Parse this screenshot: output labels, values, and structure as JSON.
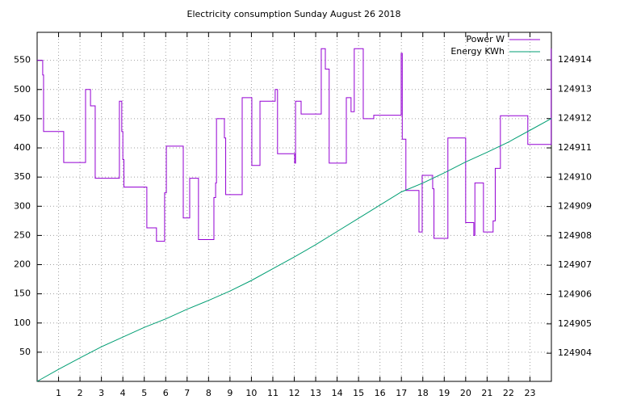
{
  "chart_data": {
    "type": "step",
    "title": "Electricity consumption Sunday August 26 2018",
    "xlim": [
      0,
      24
    ],
    "xticks": [
      1,
      2,
      3,
      4,
      5,
      6,
      7,
      8,
      9,
      10,
      11,
      12,
      13,
      14,
      15,
      16,
      17,
      18,
      19,
      20,
      21,
      22,
      23
    ],
    "ylim": [
      0,
      598
    ],
    "yticks": [
      50,
      100,
      150,
      200,
      250,
      300,
      350,
      400,
      450,
      500,
      550
    ],
    "y2lim": [
      124903.04,
      124914.94
    ],
    "y2ticks": [
      124904,
      124905,
      124906,
      124907,
      124908,
      124909,
      124910,
      124911,
      124912,
      124913,
      124914
    ],
    "grid": true,
    "legend": "top-right",
    "series": [
      {
        "name": "Power W",
        "color": "#9400d3",
        "x": [
          0,
          0.26,
          0.3,
          1.24,
          2.26,
          2.49,
          2.71,
          3.84,
          3.95,
          4.0,
          4.05,
          5.12,
          5.57,
          5.95,
          6.03,
          6.82,
          7.12,
          7.53,
          8.25,
          8.33,
          8.37,
          8.74,
          8.8,
          9.57,
          10.02,
          10.4,
          11.11,
          11.22,
          12.02,
          12.06,
          12.32,
          13.26,
          13.45,
          13.63,
          14.43,
          14.65,
          14.8,
          15.22,
          15.71,
          16.99,
          17.04,
          17.21,
          17.82,
          17.97,
          18.46,
          18.52,
          19.17,
          20.0,
          20.38,
          20.43,
          20.83,
          21.28,
          21.38,
          21.62,
          22.9,
          23.99
        ],
        "values": [
          550,
          525,
          428,
          375,
          500,
          472,
          348,
          480,
          428,
          380,
          333,
          263,
          240,
          323,
          403,
          280,
          348,
          243,
          315,
          340,
          450,
          417,
          320,
          486,
          370,
          480,
          500,
          390,
          374,
          480,
          458,
          570,
          535,
          374,
          486,
          462,
          570,
          450,
          456,
          562,
          415,
          327,
          256,
          353,
          330,
          245,
          417,
          272,
          250,
          340,
          256,
          275,
          365,
          455,
          406,
          570
        ]
      },
      {
        "name": "Energy KWh",
        "color": "#009e73",
        "axis": "y2",
        "x": [
          0,
          1,
          2,
          3,
          4,
          5,
          6,
          7,
          8,
          9,
          10,
          11,
          12,
          13,
          14,
          15,
          16,
          17,
          18,
          19,
          20,
          21,
          22,
          23,
          24
        ],
        "values": [
          124903.04,
          124903.45,
          124903.84,
          124904.22,
          124904.55,
          124904.88,
          124905.17,
          124905.5,
          124905.8,
          124906.12,
          124906.48,
          124906.88,
          124907.28,
          124907.7,
          124908.15,
          124908.6,
          124909.05,
          124909.5,
          124909.8,
          124910.15,
          124910.52,
          124910.85,
          124911.2,
          124911.6,
          124912
        ]
      }
    ]
  }
}
